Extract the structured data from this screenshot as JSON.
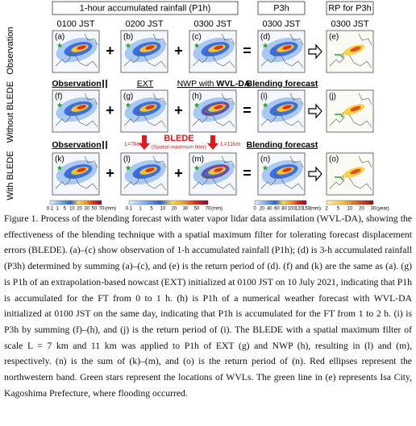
{
  "header": {
    "p1h": "1-hour accumulated rainfall (P1h)",
    "p3h": "P3h",
    "rp": "RP for P3h"
  },
  "times": [
    "0100 JST",
    "0200 JST",
    "0300 JST",
    "0300 JST",
    "0300 JST"
  ],
  "rows": [
    "Observation",
    "Without BLEDE",
    "With BLEDE"
  ],
  "row_labels": {
    "observation_2": "Observation",
    "ext": "EXT",
    "nwp": "NWP with ",
    "wvl": "WVL-DA",
    "blend_2": "Blending forecast",
    "observation_3": "Observation",
    "blend_3": "Blending forecast"
  },
  "panels": [
    "(a)",
    "(b)",
    "(c)",
    "(d)",
    "(e)",
    "(f)",
    "(g)",
    "(h)",
    "(i)",
    "(j)",
    "(k)",
    "(l)",
    "(m)",
    "(n)",
    "(o)"
  ],
  "annotations": {
    "l_small": "L=7km",
    "l_large": "L=11km",
    "blede": "BLEDE",
    "blede_note": "(Spatial maximum filter)"
  },
  "colorbars": [
    {
      "ticks": [
        "0.1",
        "1",
        "5",
        "10",
        "20",
        "30",
        "50",
        "70"
      ],
      "unit": "(mm)"
    },
    {
      "ticks": [
        "0.1",
        "1",
        "5",
        "10",
        "20",
        "30",
        "50",
        "70"
      ],
      "unit": "(mm)"
    },
    {
      "ticks": [
        "0",
        "20",
        "40",
        "60",
        "80",
        "100",
        "120",
        "150"
      ],
      "unit": "(mm)"
    },
    {
      "ticks": [
        "2",
        "5",
        "10",
        "20",
        "30"
      ],
      "unit": "(year)"
    }
  ],
  "caption": "Figure 1. Process of the blending forecast with water vapor lidar data assimilation (WVL-DA), showing the effectiveness of the blending technique with a spatial maximum filter for tolerating forecast displacement errors (BLEDE). (a)–(c) show observation of 1-h accumulated rainfall (P1h); (d) is 3-h accumulated rainfall (P3h) determined by summing (a)–(c), and (e) is the return period of (d). (f) and (k) are the same as (a). (g) is P1h of an extrapolation-based nowcast (EXT) initialized at 0100 JST on 10 July 2021, indicating that P1h is accumulated for the FT from 0 to 1 h. (h) is P1h of a numerical weather forecast with WVL-DA initialized at 0100 JST on the same day, indicating that P1h is accumulated for the FT from 1 to 2 h. (i) is P3h by summing (f)–(h), and (j) is the return period of (i). The BLEDE with a spatial maximum filter of scale L = 7 km and 11 km was applied to P1h of EXT (g) and NWP (h), resulting in (l) and (m), respectively. (n) is the sum of (k)–(m), and (o) is the return period of (n). Red ellipses represent the northwestern band. Green stars represent the locations of WVLs. The green line in (e) represents Isa City, Kagoshima Prefecture, where flooding occurred."
}
